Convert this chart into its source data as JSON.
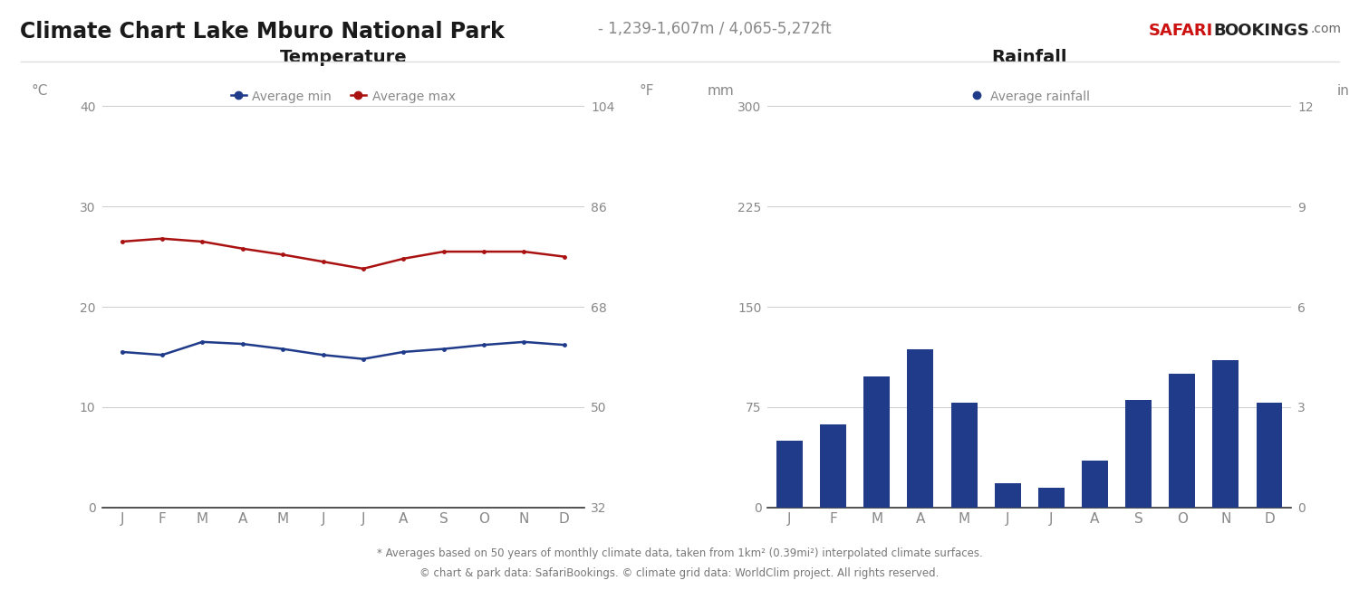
{
  "title_main": "Climate Chart Lake Mburo National Park",
  "title_sub": "- 1,239-1,607m / 4,065-5,272ft",
  "months": [
    "J",
    "F",
    "M",
    "A",
    "M",
    "J",
    "J",
    "A",
    "S",
    "O",
    "N",
    "D"
  ],
  "temp_min": [
    15.5,
    15.2,
    16.5,
    16.3,
    15.8,
    15.2,
    14.8,
    15.5,
    15.8,
    16.2,
    16.5,
    16.2
  ],
  "temp_max": [
    26.5,
    26.8,
    26.5,
    25.8,
    25.2,
    24.5,
    23.8,
    24.8,
    25.5,
    25.5,
    25.5,
    25.0
  ],
  "rainfall": [
    50,
    62,
    98,
    118,
    78,
    18,
    15,
    35,
    80,
    100,
    110,
    78
  ],
  "temp_min_color": "#1F3B8A",
  "temp_max_color": "#AA1111",
  "bar_color": "#1F3B8A",
  "grid_color": "#CCCCCC",
  "background_color": "#FFFFFF",
  "title_color": "#1A1A1A",
  "subtitle_color": "#888888",
  "axis_label_color": "#888888",
  "tick_color": "#888888",
  "footer_text1": "* Averages based on 50 years of monthly climate data, taken from 1km² (0.39mi²) interpolated climate surfaces.",
  "footer_text2": "© chart & park data: SafariBookings. © climate grid data: WorldClim project. All rights reserved.",
  "temp_title": "Temperature",
  "rain_title": "Rainfall",
  "legend_min": "Average min",
  "legend_max": "Average max",
  "legend_rain": "Average rainfall",
  "celsius_label": "°C",
  "fahrenheit_label": "°F",
  "mm_label": "mm",
  "in_label": "in",
  "temp_ylim": [
    0,
    40
  ],
  "temp_yticks": [
    0,
    10,
    20,
    30,
    40
  ],
  "fahr_yticks": [
    32,
    50,
    68,
    86,
    104
  ],
  "rain_ylim": [
    0,
    300
  ],
  "rain_yticks": [
    0,
    75,
    150,
    225,
    300
  ],
  "in_yticks": [
    0,
    3,
    6,
    9,
    12
  ],
  "marker_size": 3.5,
  "logo_safari_color": "#CC1111",
  "logo_bookings_color": "#222222",
  "logo_com_color": "#666666"
}
